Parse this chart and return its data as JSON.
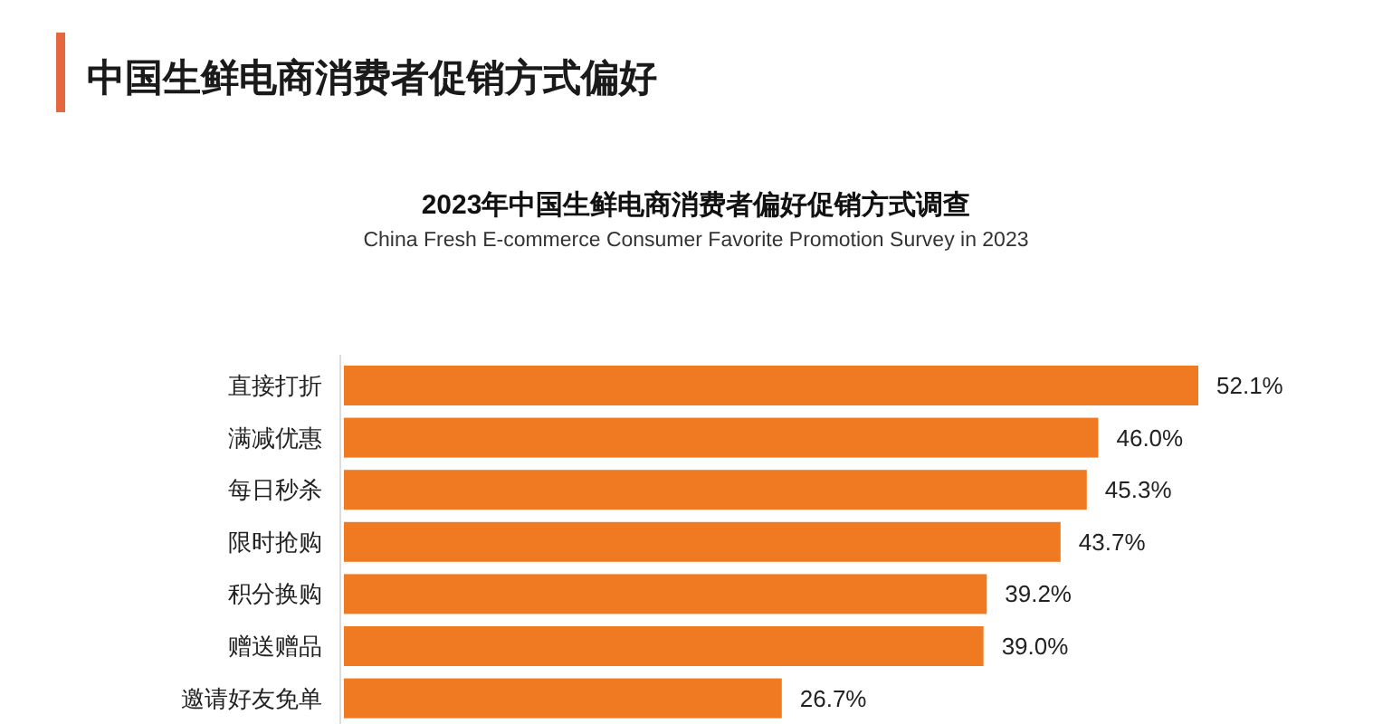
{
  "chart_data": {
    "type": "bar",
    "orientation": "horizontal",
    "title": "中国生鲜电商消费者促销方式偏好",
    "subtitle": "2023年中国生鲜电商消费者偏好促销方式调查",
    "annotations": [
      "China Fresh E-commerce Consumer Favorite Promotion Survey in 2023"
    ],
    "categories": [
      "直接打折",
      "满减优惠",
      "每日秒杀",
      "限时抢购",
      "积分换购",
      "赠送赠品",
      "邀请好友免单"
    ],
    "values": [
      52.1,
      46.0,
      45.3,
      43.7,
      39.2,
      39.0,
      26.7
    ],
    "value_labels": [
      "52.1%",
      "46.0%",
      "45.3%",
      "43.7%",
      "39.2%",
      "39.0%",
      "26.7%"
    ],
    "color": "#f07a22"
  }
}
